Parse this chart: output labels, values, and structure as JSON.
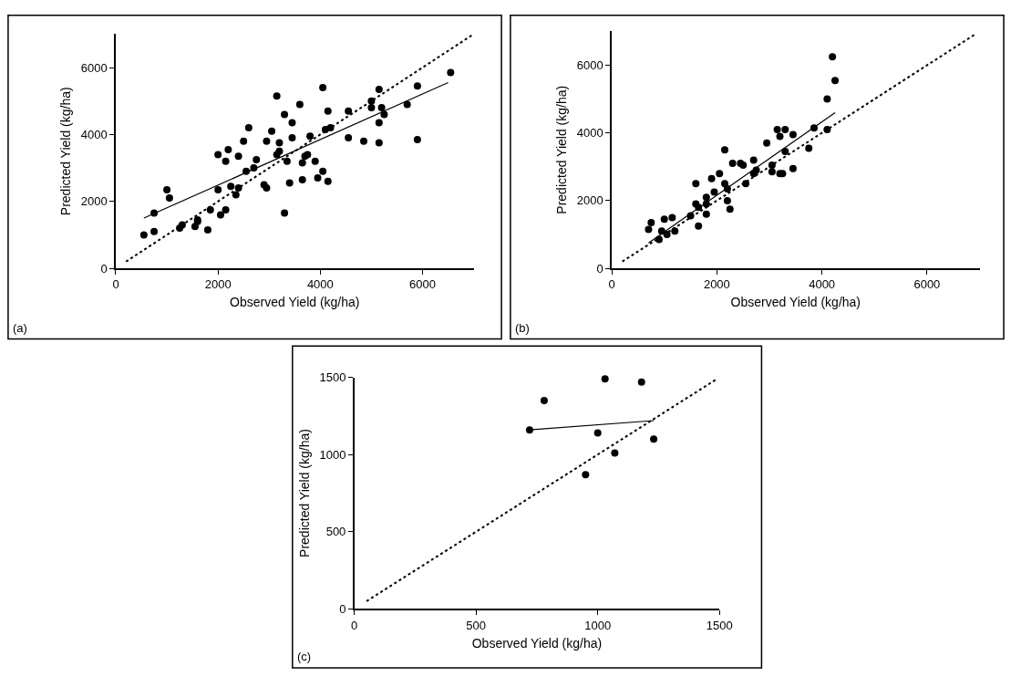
{
  "chart_data": [
    {
      "type": "scatter",
      "xlabel": "Observed Yield (kg/ha)",
      "ylabel": "Predicted Yield (kg/ha)",
      "xlim": [
        0,
        7000
      ],
      "ylim": [
        0,
        7000
      ],
      "xticks": [
        0,
        2000,
        4000,
        6000
      ],
      "yticks": [
        0,
        2000,
        4000,
        6000
      ],
      "grid": false,
      "marker": "circle",
      "annotations": [
        "(a)"
      ],
      "series": [
        {
          "color": "#000000",
          "x": [
            550,
            750,
            750,
            1000,
            1050,
            1250,
            1300,
            1550,
            1600,
            1600,
            1800,
            1850,
            2000,
            2000,
            2050,
            2150,
            2150,
            2200,
            2250,
            2350,
            2400,
            2400,
            2500,
            2600,
            2550,
            2700,
            2750,
            2900,
            2950,
            2950,
            3050,
            3150,
            3200,
            3200,
            3150,
            3300,
            3350,
            3400,
            3300,
            3450,
            3450,
            3600,
            3650,
            3650,
            3700,
            3750,
            3800,
            3900,
            3950,
            4050,
            4050,
            4150,
            4150,
            4100,
            4200,
            4550,
            4550,
            4850,
            5000,
            5000,
            5150,
            5150,
            5150,
            5200,
            5250,
            5700,
            5900,
            5900,
            6550
          ],
          "values": [
            1000,
            1100,
            1650,
            2350,
            2100,
            1200,
            1300,
            1250,
            1450,
            1400,
            1150,
            1750,
            2350,
            3400,
            1600,
            1750,
            3200,
            3550,
            2450,
            2200,
            2400,
            3350,
            3800,
            4200,
            2900,
            3000,
            3250,
            2500,
            2400,
            3800,
            4100,
            5150,
            3750,
            3500,
            3400,
            4600,
            3200,
            2550,
            1650,
            4350,
            3900,
            4900,
            2650,
            3150,
            3350,
            3400,
            3950,
            3200,
            2700,
            2900,
            5400,
            2600,
            4700,
            4150,
            4200,
            4700,
            3900,
            3800,
            5000,
            4800,
            3750,
            4350,
            5350,
            4800,
            4600,
            4900,
            5450,
            3850,
            5850
          ]
        },
        {
          "type": "line",
          "color": "#000000",
          "line_style": "dotted",
          "marker": "none",
          "x": [
            200,
            7000
          ],
          "values": [
            200,
            7000
          ]
        },
        {
          "type": "line",
          "color": "#000000",
          "line_style": "solid",
          "marker": "none",
          "x": [
            550,
            6500
          ],
          "values": [
            1500,
            5550
          ]
        }
      ]
    },
    {
      "type": "scatter",
      "xlabel": "Observed Yield (kg/ha)",
      "ylabel": "Predicted Yield (kg/ha)",
      "xlim": [
        0,
        7000
      ],
      "ylim": [
        0,
        7000
      ],
      "xticks": [
        0,
        2000,
        4000,
        6000
      ],
      "yticks": [
        0,
        2000,
        4000,
        6000
      ],
      "grid": false,
      "marker": "circle",
      "annotations": [
        "(b)"
      ],
      "series": [
        {
          "color": "#000000",
          "x": [
            700,
            750,
            900,
            950,
            1000,
            1050,
            1150,
            1200,
            1500,
            1600,
            1600,
            1650,
            1650,
            1800,
            1800,
            1800,
            1900,
            1950,
            2050,
            2150,
            2150,
            2200,
            2200,
            2250,
            2300,
            2450,
            2500,
            2550,
            2700,
            2700,
            2750,
            2950,
            3050,
            3050,
            3150,
            3200,
            3200,
            3250,
            3300,
            3300,
            3450,
            3450,
            3750,
            3850,
            4100,
            4100,
            4200,
            4250
          ],
          "values": [
            1150,
            1350,
            850,
            1100,
            1450,
            1000,
            1500,
            1100,
            1550,
            2500,
            1900,
            1250,
            1800,
            1600,
            2100,
            1900,
            2650,
            2250,
            2800,
            3500,
            2500,
            2350,
            2000,
            1750,
            3100,
            3100,
            3050,
            2500,
            3200,
            2800,
            2900,
            3700,
            3050,
            2850,
            4100,
            2800,
            3900,
            2800,
            3450,
            4100,
            3950,
            2950,
            3550,
            4150,
            5000,
            4100,
            6250,
            5550
          ]
        },
        {
          "type": "line",
          "color": "#000000",
          "line_style": "dotted",
          "marker": "none",
          "x": [
            200,
            6900
          ],
          "values": [
            200,
            6900
          ]
        },
        {
          "type": "line",
          "color": "#000000",
          "line_style": "solid",
          "marker": "none",
          "x": [
            700,
            4250
          ],
          "values": [
            750,
            4600
          ]
        }
      ]
    },
    {
      "type": "scatter",
      "xlabel": "Observed Yield (kg/ha)",
      "ylabel": "Predicted Yield (kg/ha)",
      "xlim": [
        0,
        1500
      ],
      "ylim": [
        0,
        1500
      ],
      "xticks": [
        0,
        500,
        1000,
        1500
      ],
      "yticks": [
        0,
        500,
        1000,
        1500
      ],
      "grid": false,
      "marker": "circle",
      "annotations": [
        "(c)"
      ],
      "series": [
        {
          "color": "#000000",
          "x": [
            720,
            780,
            1000,
            1030,
            950,
            1070,
            1180,
            1230
          ],
          "values": [
            1160,
            1350,
            1140,
            1490,
            870,
            1010,
            1470,
            1100
          ]
        },
        {
          "type": "line",
          "color": "#000000",
          "line_style": "dotted",
          "marker": "none",
          "x": [
            50,
            1490
          ],
          "values": [
            50,
            1490
          ]
        },
        {
          "type": "line",
          "color": "#000000",
          "line_style": "solid",
          "marker": "none",
          "x": [
            720,
            1230
          ],
          "values": [
            1160,
            1220
          ]
        }
      ]
    }
  ]
}
